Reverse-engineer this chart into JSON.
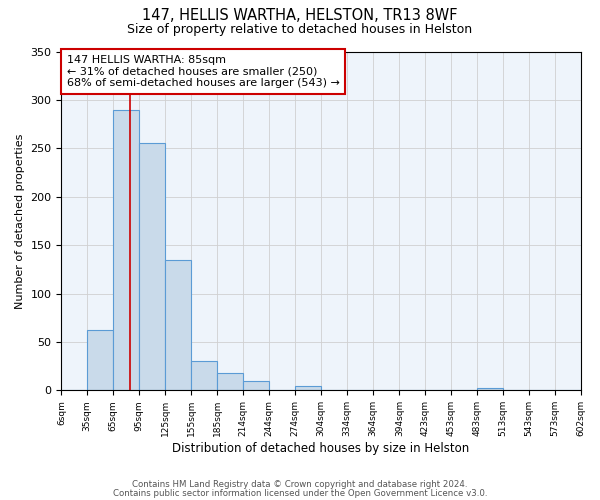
{
  "title": "147, HELLIS WARTHA, HELSTON, TR13 8WF",
  "subtitle": "Size of property relative to detached houses in Helston",
  "xlabel": "Distribution of detached houses by size in Helston",
  "ylabel": "Number of detached properties",
  "bin_edges": [
    6,
    35,
    65,
    95,
    125,
    155,
    185,
    214,
    244,
    274,
    304,
    334,
    364,
    394,
    423,
    453,
    483,
    513,
    543,
    573,
    602
  ],
  "bar_heights": [
    0,
    62,
    290,
    255,
    135,
    30,
    18,
    10,
    0,
    5,
    0,
    0,
    0,
    0,
    0,
    0,
    2,
    0,
    0,
    0
  ],
  "bar_color": "#c9daea",
  "bar_edgecolor": "#5b9bd5",
  "property_size": 85,
  "redline_color": "#cc0000",
  "ylim": [
    0,
    350
  ],
  "yticks": [
    0,
    50,
    100,
    150,
    200,
    250,
    300,
    350
  ],
  "annotation_title": "147 HELLIS WARTHA: 85sqm",
  "annotation_line1": "← 31% of detached houses are smaller (250)",
  "annotation_line2": "68% of semi-detached houses are larger (543) →",
  "annotation_box_edgecolor": "#cc0000",
  "tick_labels": [
    "6sqm",
    "35sqm",
    "65sqm",
    "95sqm",
    "125sqm",
    "155sqm",
    "185sqm",
    "214sqm",
    "244sqm",
    "274sqm",
    "304sqm",
    "334sqm",
    "364sqm",
    "394sqm",
    "423sqm",
    "453sqm",
    "483sqm",
    "513sqm",
    "543sqm",
    "573sqm",
    "602sqm"
  ],
  "footnote1": "Contains HM Land Registry data © Crown copyright and database right 2024.",
  "footnote2": "Contains public sector information licensed under the Open Government Licence v3.0.",
  "grid_color": "#d0d0d0",
  "background_color": "#eef4fb"
}
